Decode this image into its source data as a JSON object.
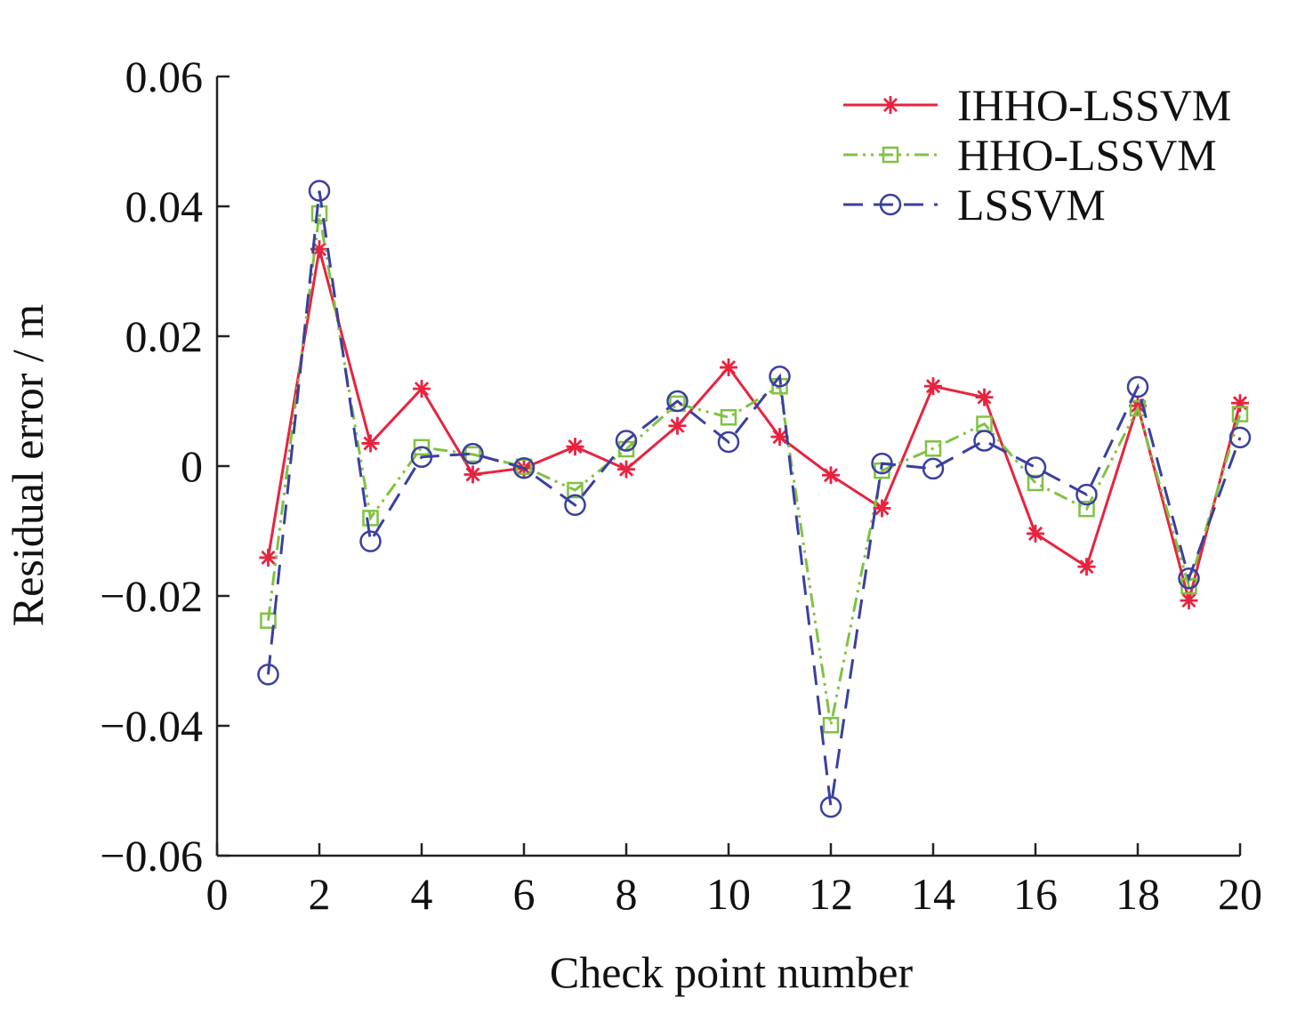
{
  "chart_data": {
    "type": "line",
    "title": "",
    "xlabel": "Check point number",
    "ylabel": "Residual error / m",
    "xlim": [
      0,
      20
    ],
    "ylim": [
      -0.06,
      0.06
    ],
    "x_ticks": [
      0,
      2,
      4,
      6,
      8,
      10,
      12,
      14,
      16,
      18,
      20
    ],
    "x_tick_labels": [
      "0",
      "2",
      "4",
      "6",
      "8",
      "10",
      "12",
      "14",
      "16",
      "18",
      "20"
    ],
    "y_ticks": [
      -0.06,
      -0.04,
      -0.02,
      0,
      0.02,
      0.04,
      0.06
    ],
    "y_tick_labels": [
      "−0.06",
      "−0.04",
      "−0.02",
      "0",
      "0.02",
      "0.04",
      "0.06"
    ],
    "grid": false,
    "legend_position": "top-right",
    "x": [
      1,
      2,
      3,
      4,
      5,
      6,
      7,
      8,
      9,
      10,
      11,
      12,
      13,
      14,
      15,
      16,
      17,
      18,
      19,
      20
    ],
    "series": [
      {
        "name": "IHHO-LSSVM",
        "color": "#e8233f",
        "marker": "asterisk",
        "dash": "solid",
        "values": [
          -0.0141,
          0.0334,
          0.0035,
          0.0119,
          -0.0013,
          -0.0003,
          0.003,
          -0.0005,
          0.0062,
          0.0152,
          0.0045,
          -0.0014,
          -0.0065,
          0.0123,
          0.0106,
          -0.0104,
          -0.0155,
          0.0093,
          -0.0207,
          0.0097
        ]
      },
      {
        "name": "HHO-LSSVM",
        "color": "#7fc241",
        "marker": "square",
        "dash": "dashdotdot",
        "values": [
          -0.0238,
          0.0389,
          -0.008,
          0.0029,
          0.0018,
          -0.0001,
          -0.0037,
          0.0026,
          0.0096,
          0.0075,
          0.0123,
          -0.0399,
          -0.0007,
          0.0027,
          0.0065,
          -0.0026,
          -0.0066,
          0.0089,
          -0.0185,
          0.008
        ]
      },
      {
        "name": "LSSVM",
        "color": "#3a3fa0",
        "marker": "circle",
        "dash": "dashed",
        "values": [
          -0.0321,
          0.0424,
          -0.0116,
          0.0014,
          0.0019,
          -0.0003,
          -0.006,
          0.0039,
          0.01,
          0.0037,
          0.0138,
          -0.0525,
          0.0004,
          -0.0004,
          0.0039,
          -0.0002,
          -0.0044,
          0.0122,
          -0.0173,
          0.0044
        ]
      }
    ]
  }
}
